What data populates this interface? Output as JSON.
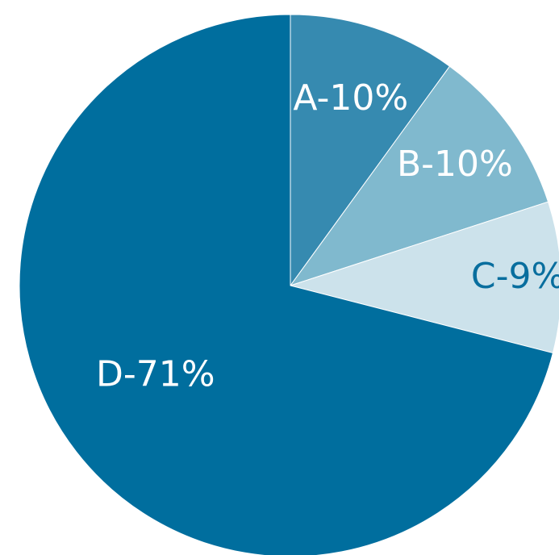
{
  "chart_data": {
    "type": "pie",
    "title": "",
    "start_angle_deg": 0,
    "direction": "clockwise",
    "slices": [
      {
        "name": "A",
        "value": 10,
        "label": "A-10%",
        "color": "#368ab0",
        "label_color": "#ffffff"
      },
      {
        "name": "B",
        "value": 10,
        "label": "B-10%",
        "color": "#80b9ce",
        "label_color": "#ffffff"
      },
      {
        "name": "C",
        "value": 9,
        "label": "C-9%",
        "color": "#cce2eb",
        "label_color": "#086e9e"
      },
      {
        "name": "D",
        "value": 71,
        "label": "D-71%",
        "color": "#006e9e",
        "label_color": "#ffffff"
      }
    ]
  }
}
